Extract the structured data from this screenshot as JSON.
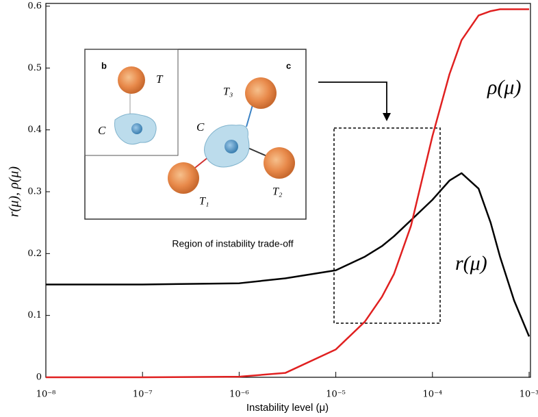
{
  "chart_data": {
    "type": "line",
    "xlabel": "Instability level (μ)",
    "ylabel": "r(μ), ρ(μ)",
    "xscale": "log",
    "x": [
      1e-08,
      1e-07,
      1e-06,
      3e-06,
      1e-05,
      2e-05,
      3e-05,
      4e-05,
      6e-05,
      0.0001,
      0.00015,
      0.0002,
      0.0003,
      0.0004,
      0.0005,
      0.0007,
      0.001
    ],
    "series": [
      {
        "name": "r(μ)",
        "color": "#000000",
        "values": [
          0.15,
          0.15,
          0.152,
          0.16,
          0.173,
          0.195,
          0.212,
          0.228,
          0.254,
          0.287,
          0.318,
          0.33,
          0.305,
          0.25,
          0.195,
          0.124,
          0.066
        ]
      },
      {
        "name": "ρ(μ)",
        "color": "#e02020",
        "values": [
          0,
          0,
          0.001,
          0.007,
          0.045,
          0.09,
          0.13,
          0.167,
          0.245,
          0.39,
          0.49,
          0.545,
          0.585,
          0.592,
          0.595,
          0.595,
          0.595
        ]
      }
    ],
    "xlim": [
      1e-08,
      0.001
    ],
    "xticks": [
      {
        "value": 1e-08,
        "label": "10⁻⁸"
      },
      {
        "value": 1e-07,
        "label": "10⁻⁷"
      },
      {
        "value": 1e-06,
        "label": "10⁻⁶"
      },
      {
        "value": 1e-05,
        "label": "10⁻⁵"
      },
      {
        "value": 0.0001,
        "label": "10⁻⁴"
      },
      {
        "value": 0.001,
        "label": "10⁻³"
      }
    ],
    "ylim": [
      0,
      0.6
    ],
    "yticks": [
      0,
      0.1,
      0.2,
      0.3,
      0.4,
      0.5,
      0.6
    ],
    "grid": false,
    "inset": {
      "panel_b": "b",
      "panel_c": "c",
      "b_T": "T",
      "b_C": "C",
      "c_C": "C",
      "c_T3": "T₃",
      "c_T2": "T₂",
      "c_T1": "T₁",
      "caption": "Region of instability trade-off"
    }
  }
}
